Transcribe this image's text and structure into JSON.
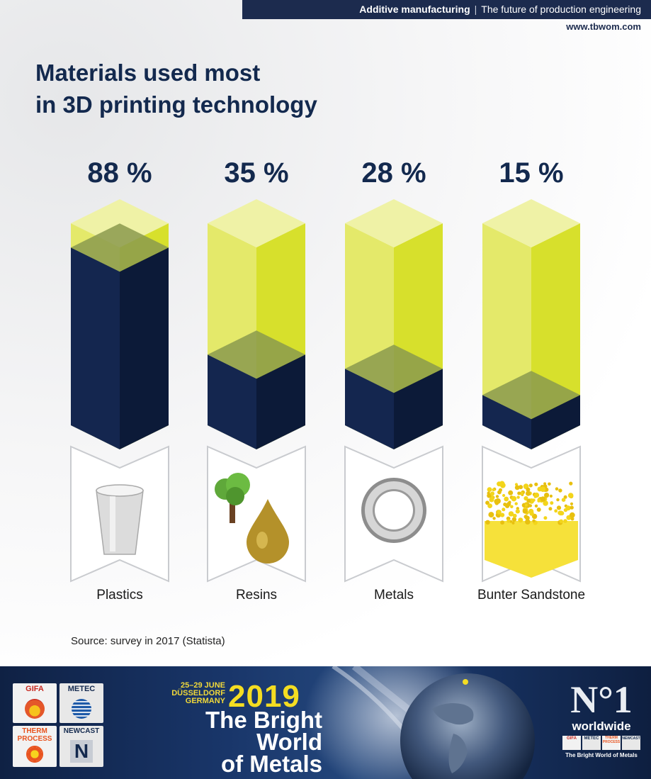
{
  "header": {
    "topic_bold": "Additive manufacturing",
    "topic_rest": "The future of production engineering",
    "website": "www.tbwom.com"
  },
  "title_lines": [
    "Materials used most",
    "in 3D printing technology"
  ],
  "chart_data": {
    "type": "bar",
    "categories": [
      "Plastics",
      "Resins",
      "Metals",
      "Bunter Sandstone"
    ],
    "values": [
      88,
      35,
      28,
      15
    ],
    "value_labels": [
      "88 %",
      "35 %",
      "28 %",
      "15 %"
    ],
    "unit": "%",
    "ylim": [
      0,
      100
    ],
    "icons": [
      "cup-icon",
      "tree-and-drop-icon",
      "metal-ring-icon",
      "sand-particles-icon"
    ],
    "colors": {
      "fill": "#14264f",
      "fill_side": "#0c1a38",
      "glass": "#e4e96a",
      "glass_side": "#d7e02c",
      "glass_cap": "#eff2a6"
    }
  },
  "source": "Source: survey in 2017 (Statista)",
  "banner": {
    "logos": [
      "GIFA",
      "METEC",
      "THERM PROCESS",
      "NEWCAST"
    ],
    "date_lines": [
      "25–29 JUNE",
      "DÜSSELDORF",
      "GERMANY"
    ],
    "year": "2019",
    "motto_lines": [
      "The Bright",
      "World",
      "of Metals"
    ],
    "badge_big": "N°1",
    "badge_word": "worldwide",
    "badge_logos": [
      "GIFA",
      "METEC",
      "THERM PROCESS",
      "NEWCAST"
    ],
    "badge_motto": "The Bright World of Metals",
    "colors": {
      "year": "#f4dd22",
      "gifa": "#c7271f",
      "therm": "#e8531f",
      "navy": "#13294e"
    }
  }
}
